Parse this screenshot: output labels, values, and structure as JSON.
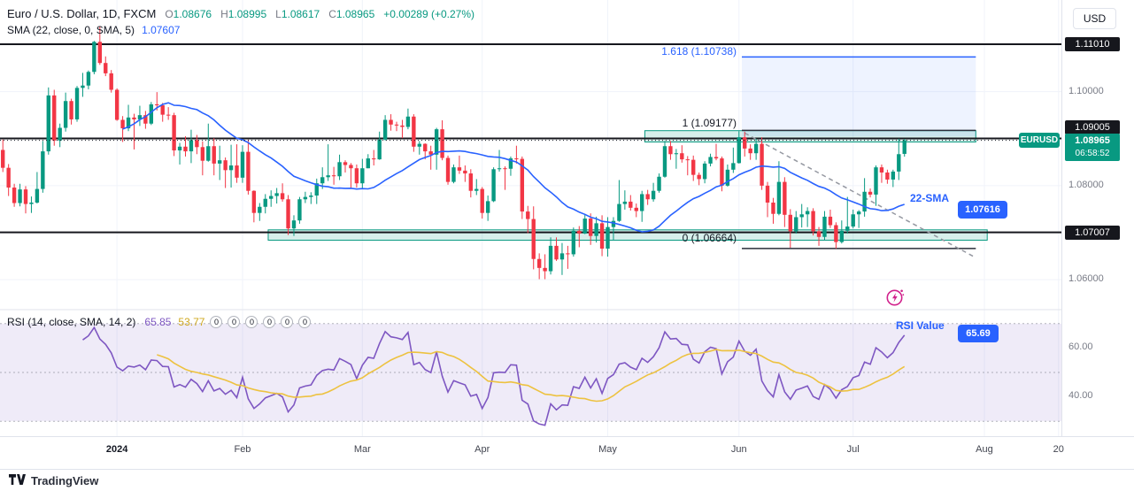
{
  "header": {
    "title": "Euro / U.S. Dollar, 1D, FXCM",
    "open_label": "O",
    "open": "1.08676",
    "high_label": "H",
    "high": "1.08995",
    "low_label": "L",
    "low": "1.08617",
    "close_label": "C",
    "close": "1.08965",
    "change": "+0.00289 (+0.27%)",
    "indicator_label": "SMA (22, close, 0, SMA, 5)",
    "indicator_value": "1.07607"
  },
  "rsi_header": {
    "label": "RSI (14, close, SMA, 14, 2)",
    "rsi_value": "65.85",
    "ma_value": "53.77",
    "badges": [
      "0",
      "0",
      "0",
      "0",
      "0",
      "0"
    ]
  },
  "currency_button": "USD",
  "axis": {
    "price_ticks": [
      {
        "text": "1.10000",
        "price": 1.1
      },
      {
        "text": "1.08000",
        "price": 1.08
      },
      {
        "text": "1.06000",
        "price": 1.06
      }
    ],
    "price_badges": [
      {
        "text": "1.11010",
        "price": 1.1101
      },
      {
        "text": "1.09005",
        "price": 1.09005
      },
      {
        "text": "1.07007",
        "price": 1.07007
      }
    ],
    "rsi_ticks": [
      {
        "text": "60.00",
        "value": 60
      },
      {
        "text": "40.00",
        "value": 40
      }
    ]
  },
  "last_price": {
    "symbol_tag": "EURUSD",
    "price_text": "1.08965",
    "countdown": "06:58:52",
    "price": 1.08965
  },
  "callouts": {
    "sma": {
      "label": "22-SMA",
      "value": "1.07616"
    },
    "rsi": {
      "label": "RSI Value",
      "value": "65.69"
    }
  },
  "time_axis": {
    "total_slots": 186,
    "labels": [
      {
        "text": "2024",
        "slot": 20,
        "major": true
      },
      {
        "text": "Feb",
        "slot": 42
      },
      {
        "text": "Mar",
        "slot": 63
      },
      {
        "text": "Apr",
        "slot": 84
      },
      {
        "text": "May",
        "slot": 106
      },
      {
        "text": "Jun",
        "slot": 129
      },
      {
        "text": "Jul",
        "slot": 149
      },
      {
        "text": "Aug",
        "slot": 172
      },
      {
        "text": "20",
        "slot": 185
      }
    ]
  },
  "footer": {
    "brand": "TradingView"
  },
  "chart_data": {
    "type": "candlestick",
    "title": "Euro / U.S. Dollar, 1D, FXCM",
    "symbol": "EURUSD",
    "interval": "1D",
    "price_pane": {
      "min": 1.054,
      "max": 1.1195,
      "grid_prices": [
        1.1,
        1.08,
        1.06
      ]
    },
    "sma_period": 22,
    "rsi_pane": {
      "min": 25,
      "max": 75,
      "period": 14,
      "ma_period": 14,
      "bands": [
        70,
        50,
        30
      ],
      "axis_ticks": [
        60,
        40
      ]
    },
    "hlines": [
      {
        "price": 1.1101
      },
      {
        "price": 1.09005
      },
      {
        "price": 1.07007
      }
    ],
    "zones": [
      {
        "slot_start": 113,
        "slot_end": 171,
        "price_top": 1.0917,
        "price_bottom": 1.0893
      },
      {
        "slot_start": 47,
        "slot_end": 173,
        "price_top": 1.0706,
        "price_bottom": 1.0684
      }
    ],
    "projection": {
      "slot_start": 130,
      "slot_end": 171,
      "price_top": 1.10738,
      "price_bottom": 1.0905
    },
    "trendline": {
      "slot_start": 130,
      "price_start": 1.0912,
      "slot_end": 170,
      "price_end": 1.065
    },
    "fib": {
      "slot_start": 130,
      "slot_end": 171,
      "levels": [
        {
          "text": "1.618 (1.10738)",
          "price": 1.10738,
          "color": "#2962ff"
        },
        {
          "text": "1 (1.09177)",
          "price": 1.09177,
          "color": "#2a2e39"
        },
        {
          "text": "0 (1.06664)",
          "price": 1.06664,
          "color": "#2a2e39"
        }
      ]
    },
    "colors": {
      "up": "#089981",
      "down": "#f23645",
      "sma": "#2962ff",
      "rsi": "#7e57c2",
      "rsi_ma": "#edc240",
      "grid": "#f0f3fa",
      "rsi_fill": "rgba(126,87,194,0.12)",
      "zone_fill": "rgba(8,153,129,0.16)",
      "projection_fill": "rgba(41,98,255,0.08)",
      "hline": "#16171d",
      "trendline": "#9598a1",
      "last_price_line": "#131722"
    },
    "candles": [
      [
        1.0876,
        1.0898,
        1.0829,
        1.0838
      ],
      [
        1.0838,
        1.0846,
        1.0778,
        1.0796
      ],
      [
        1.0796,
        1.0804,
        1.0755,
        1.0763
      ],
      [
        1.0763,
        1.0804,
        1.0756,
        1.0792
      ],
      [
        1.0792,
        1.0799,
        1.0741,
        1.0761
      ],
      [
        1.0761,
        1.0777,
        1.0742,
        1.0764
      ],
      [
        1.0764,
        1.0829,
        1.0762,
        1.0793
      ],
      [
        1.0793,
        1.0895,
        1.0785,
        1.0873
      ],
      [
        1.0873,
        1.1009,
        1.0866,
        1.0992
      ],
      [
        1.0992,
        1.1004,
        1.0885,
        1.0896
      ],
      [
        1.0896,
        1.0932,
        1.0882,
        1.0923
      ],
      [
        1.0923,
        1.0998,
        1.0915,
        1.098
      ],
      [
        1.098,
        1.0985,
        1.093,
        1.0941
      ],
      [
        1.0941,
        1.1012,
        1.0936,
        1.1008
      ],
      [
        1.1008,
        1.104,
        1.0989,
        1.1013
      ],
      [
        1.1013,
        1.1045,
        1.1005,
        1.1042
      ],
      [
        1.1042,
        1.1108,
        1.1037,
        1.1106
      ],
      [
        1.1106,
        1.1139,
        1.1057,
        1.1061
      ],
      [
        1.1061,
        1.1075,
        1.1033,
        1.1039
      ],
      [
        1.1039,
        1.1046,
        1.0998,
        1.1004
      ],
      [
        1.1004,
        1.1007,
        1.0938,
        1.094
      ],
      [
        1.094,
        1.0948,
        1.0893,
        1.0922
      ],
      [
        1.0922,
        1.0972,
        1.0916,
        1.0945
      ],
      [
        1.0945,
        1.0953,
        1.0877,
        1.0941
      ],
      [
        1.0941,
        1.097,
        1.0927,
        1.095
      ],
      [
        1.095,
        1.0959,
        1.0921,
        1.0932
      ],
      [
        1.0932,
        1.0978,
        1.0929,
        1.0973
      ],
      [
        1.0973,
        1.0999,
        1.096,
        1.0971
      ],
      [
        1.0971,
        1.0976,
        1.0936,
        1.0951
      ],
      [
        1.0951,
        1.0967,
        1.094,
        1.095
      ],
      [
        1.095,
        1.0955,
        1.0863,
        1.0875
      ],
      [
        1.0875,
        1.0891,
        1.0845,
        1.0883
      ],
      [
        1.0883,
        1.0905,
        1.0862,
        1.0873
      ],
      [
        1.0873,
        1.0919,
        1.0848,
        1.0897
      ],
      [
        1.0897,
        1.0908,
        1.0867,
        1.0882
      ],
      [
        1.0882,
        1.0894,
        1.0822,
        1.0853
      ],
      [
        1.0853,
        1.0932,
        1.0851,
        1.0884
      ],
      [
        1.0884,
        1.0901,
        1.0822,
        1.0847
      ],
      [
        1.0847,
        1.0885,
        1.0812,
        1.0854
      ],
      [
        1.0854,
        1.086,
        1.0795,
        1.0833
      ],
      [
        1.0833,
        1.0887,
        1.0796,
        1.0843
      ],
      [
        1.0843,
        1.0888,
        1.0806,
        1.0817
      ],
      [
        1.0817,
        1.0886,
        1.0806,
        1.0872
      ],
      [
        1.0872,
        1.0898,
        1.0781,
        1.0789
      ],
      [
        1.0789,
        1.079,
        1.0722,
        1.0742
      ],
      [
        1.0742,
        1.0763,
        1.0725,
        1.0755
      ],
      [
        1.0755,
        1.0782,
        1.0741,
        1.0772
      ],
      [
        1.0772,
        1.079,
        1.0755,
        1.0778
      ],
      [
        1.0778,
        1.0795,
        1.0762,
        1.0784
      ],
      [
        1.0784,
        1.0805,
        1.0766,
        1.0771
      ],
      [
        1.0771,
        1.078,
        1.0695,
        1.0709
      ],
      [
        1.0709,
        1.0737,
        1.0693,
        1.0726
      ],
      [
        1.0726,
        1.0776,
        1.0719,
        1.0771
      ],
      [
        1.0771,
        1.0787,
        1.0763,
        1.0776
      ],
      [
        1.0776,
        1.0786,
        1.0761,
        1.0779
      ],
      [
        1.0779,
        1.0815,
        1.0761,
        1.0805
      ],
      [
        1.0805,
        1.0839,
        1.0793,
        1.0818
      ],
      [
        1.0818,
        1.0888,
        1.081,
        1.0822
      ],
      [
        1.0822,
        1.084,
        1.0802,
        1.082
      ],
      [
        1.082,
        1.0866,
        1.0812,
        1.085
      ],
      [
        1.085,
        1.0854,
        1.0828,
        1.0844
      ],
      [
        1.0844,
        1.0848,
        1.0795,
        1.0837
      ],
      [
        1.0837,
        1.0845,
        1.0796,
        1.0805
      ],
      [
        1.0805,
        1.0857,
        1.0795,
        1.0837
      ],
      [
        1.0837,
        1.0867,
        1.0837,
        1.0858
      ],
      [
        1.0858,
        1.0876,
        1.0843,
        1.0856
      ],
      [
        1.0856,
        1.0915,
        1.0855,
        1.0898
      ],
      [
        1.0898,
        1.095,
        1.0896,
        1.094
      ],
      [
        1.094,
        1.0952,
        1.0917,
        1.093
      ],
      [
        1.093,
        1.0936,
        1.0916,
        1.0928
      ],
      [
        1.0928,
        1.094,
        1.0901,
        1.0925
      ],
      [
        1.0925,
        1.0964,
        1.092,
        1.0947
      ],
      [
        1.0947,
        1.0952,
        1.0872,
        1.0883
      ],
      [
        1.0883,
        1.0895,
        1.0866,
        1.0889
      ],
      [
        1.0889,
        1.089,
        1.0856,
        1.0873
      ],
      [
        1.0873,
        1.0885,
        1.0834,
        1.0866
      ],
      [
        1.0866,
        1.0923,
        1.0834,
        1.092
      ],
      [
        1.092,
        1.0939,
        1.0854,
        1.0859
      ],
      [
        1.0859,
        1.0864,
        1.0802,
        1.0808
      ],
      [
        1.0808,
        1.0845,
        1.0805,
        1.0839
      ],
      [
        1.0839,
        1.0864,
        1.0825,
        1.0832
      ],
      [
        1.0832,
        1.0843,
        1.0808,
        1.0826
      ],
      [
        1.0826,
        1.0835,
        1.0775,
        1.0789
      ],
      [
        1.0789,
        1.0814,
        1.078,
        1.0793
      ],
      [
        1.0793,
        1.0797,
        1.073,
        1.0742
      ],
      [
        1.0742,
        1.0779,
        1.0725,
        1.0767
      ],
      [
        1.0767,
        1.0839,
        1.0765,
        1.0835
      ],
      [
        1.0835,
        1.0876,
        1.083,
        1.0837
      ],
      [
        1.0837,
        1.0841,
        1.0791,
        1.0836
      ],
      [
        1.0836,
        1.0862,
        1.0821,
        1.0858
      ],
      [
        1.0858,
        1.0885,
        1.0847,
        1.0857
      ],
      [
        1.0857,
        1.0862,
        1.0729,
        1.0745
      ],
      [
        1.0745,
        1.0757,
        1.0699,
        1.0729
      ],
      [
        1.0729,
        1.0756,
        1.0622,
        1.0644
      ],
      [
        1.0644,
        1.0656,
        1.0601,
        1.0625
      ],
      [
        1.0625,
        1.0654,
        1.0601,
        1.0618
      ],
      [
        1.0618,
        1.069,
        1.0611,
        1.0672
      ],
      [
        1.0672,
        1.069,
        1.064,
        1.0643
      ],
      [
        1.0643,
        1.0678,
        1.061,
        1.0656
      ],
      [
        1.0656,
        1.0672,
        1.0623,
        1.0654
      ],
      [
        1.0654,
        1.0711,
        1.0649,
        1.0704
      ],
      [
        1.0704,
        1.0714,
        1.0669,
        1.0698
      ],
      [
        1.0698,
        1.074,
        1.0697,
        1.073
      ],
      [
        1.073,
        1.0741,
        1.0674,
        1.0693
      ],
      [
        1.0693,
        1.0734,
        1.0679,
        1.072
      ],
      [
        1.072,
        1.0737,
        1.065,
        1.0666
      ],
      [
        1.0666,
        1.0733,
        1.0649,
        1.0712
      ],
      [
        1.0712,
        1.0733,
        1.0685,
        1.0725
      ],
      [
        1.0725,
        1.0812,
        1.0723,
        1.0761
      ],
      [
        1.0761,
        1.079,
        1.0749,
        1.0766
      ],
      [
        1.0766,
        1.078,
        1.0747,
        1.0753
      ],
      [
        1.0753,
        1.0762,
        1.0733,
        1.0746
      ],
      [
        1.0746,
        1.0789,
        1.0723,
        1.0782
      ],
      [
        1.0782,
        1.0791,
        1.0759,
        1.0771
      ],
      [
        1.0771,
        1.0806,
        1.0766,
        1.0789
      ],
      [
        1.0789,
        1.0826,
        1.0785,
        1.0819
      ],
      [
        1.0819,
        1.0895,
        1.0817,
        1.0884
      ],
      [
        1.0884,
        1.0895,
        1.0855,
        1.0867
      ],
      [
        1.0867,
        1.0878,
        1.0836,
        1.0869
      ],
      [
        1.0869,
        1.0886,
        1.0849,
        1.0856
      ],
      [
        1.0856,
        1.0863,
        1.0822,
        1.0855
      ],
      [
        1.0855,
        1.0864,
        1.081,
        1.0823
      ],
      [
        1.0823,
        1.0828,
        1.0801,
        1.0814
      ],
      [
        1.0814,
        1.0852,
        1.0805,
        1.0847
      ],
      [
        1.0847,
        1.0868,
        1.0841,
        1.0861
      ],
      [
        1.0861,
        1.0889,
        1.0854,
        1.0858
      ],
      [
        1.0858,
        1.0862,
        1.0788,
        1.08
      ],
      [
        1.08,
        1.0845,
        1.0798,
        1.0834
      ],
      [
        1.0834,
        1.0881,
        1.0827,
        1.0848
      ],
      [
        1.0848,
        1.0916,
        1.0847,
        1.0903
      ],
      [
        1.0903,
        1.0915,
        1.0862,
        1.0879
      ],
      [
        1.0879,
        1.0888,
        1.0855,
        1.0869
      ],
      [
        1.0869,
        1.09,
        1.0855,
        1.0889
      ],
      [
        1.0889,
        1.0903,
        1.0791,
        1.08
      ],
      [
        1.08,
        1.0808,
        1.0733,
        1.0764
      ],
      [
        1.0764,
        1.0774,
        1.0719,
        1.074
      ],
      [
        1.074,
        1.0852,
        1.0737,
        1.0808
      ],
      [
        1.0808,
        1.0818,
        1.0712,
        1.0738
      ],
      [
        1.0738,
        1.075,
        1.0668,
        1.0703
      ],
      [
        1.0703,
        1.0746,
        1.0698,
        1.0733
      ],
      [
        1.0733,
        1.0761,
        1.0711,
        1.0739
      ],
      [
        1.0739,
        1.0754,
        1.0712,
        1.0746
      ],
      [
        1.0746,
        1.0752,
        1.0694,
        1.0703
      ],
      [
        1.0703,
        1.0712,
        1.0672,
        1.0691
      ],
      [
        1.0691,
        1.0746,
        1.0684,
        1.0734
      ],
      [
        1.0734,
        1.0749,
        1.071,
        1.0716
      ],
      [
        1.0716,
        1.0722,
        1.0666,
        1.068
      ],
      [
        1.068,
        1.0726,
        1.0677,
        1.0704
      ],
      [
        1.0704,
        1.0776,
        1.0698,
        1.0713
      ],
      [
        1.0713,
        1.0749,
        1.0709,
        1.0739
      ],
      [
        1.0739,
        1.0748,
        1.071,
        1.0745
      ],
      [
        1.0745,
        1.0816,
        1.0734,
        1.0787
      ],
      [
        1.0787,
        1.0794,
        1.0775,
        1.0781
      ],
      [
        1.0781,
        1.0843,
        1.0757,
        1.0839
      ],
      [
        1.0839,
        1.0845,
        1.0806,
        1.0828
      ],
      [
        1.0828,
        1.0834,
        1.0804,
        1.0813
      ],
      [
        1.0813,
        1.0834,
        1.0797,
        1.083
      ],
      [
        1.083,
        1.09,
        1.0812,
        1.0867
      ],
      [
        1.08676,
        1.08995,
        1.08617,
        1.08965
      ]
    ]
  }
}
